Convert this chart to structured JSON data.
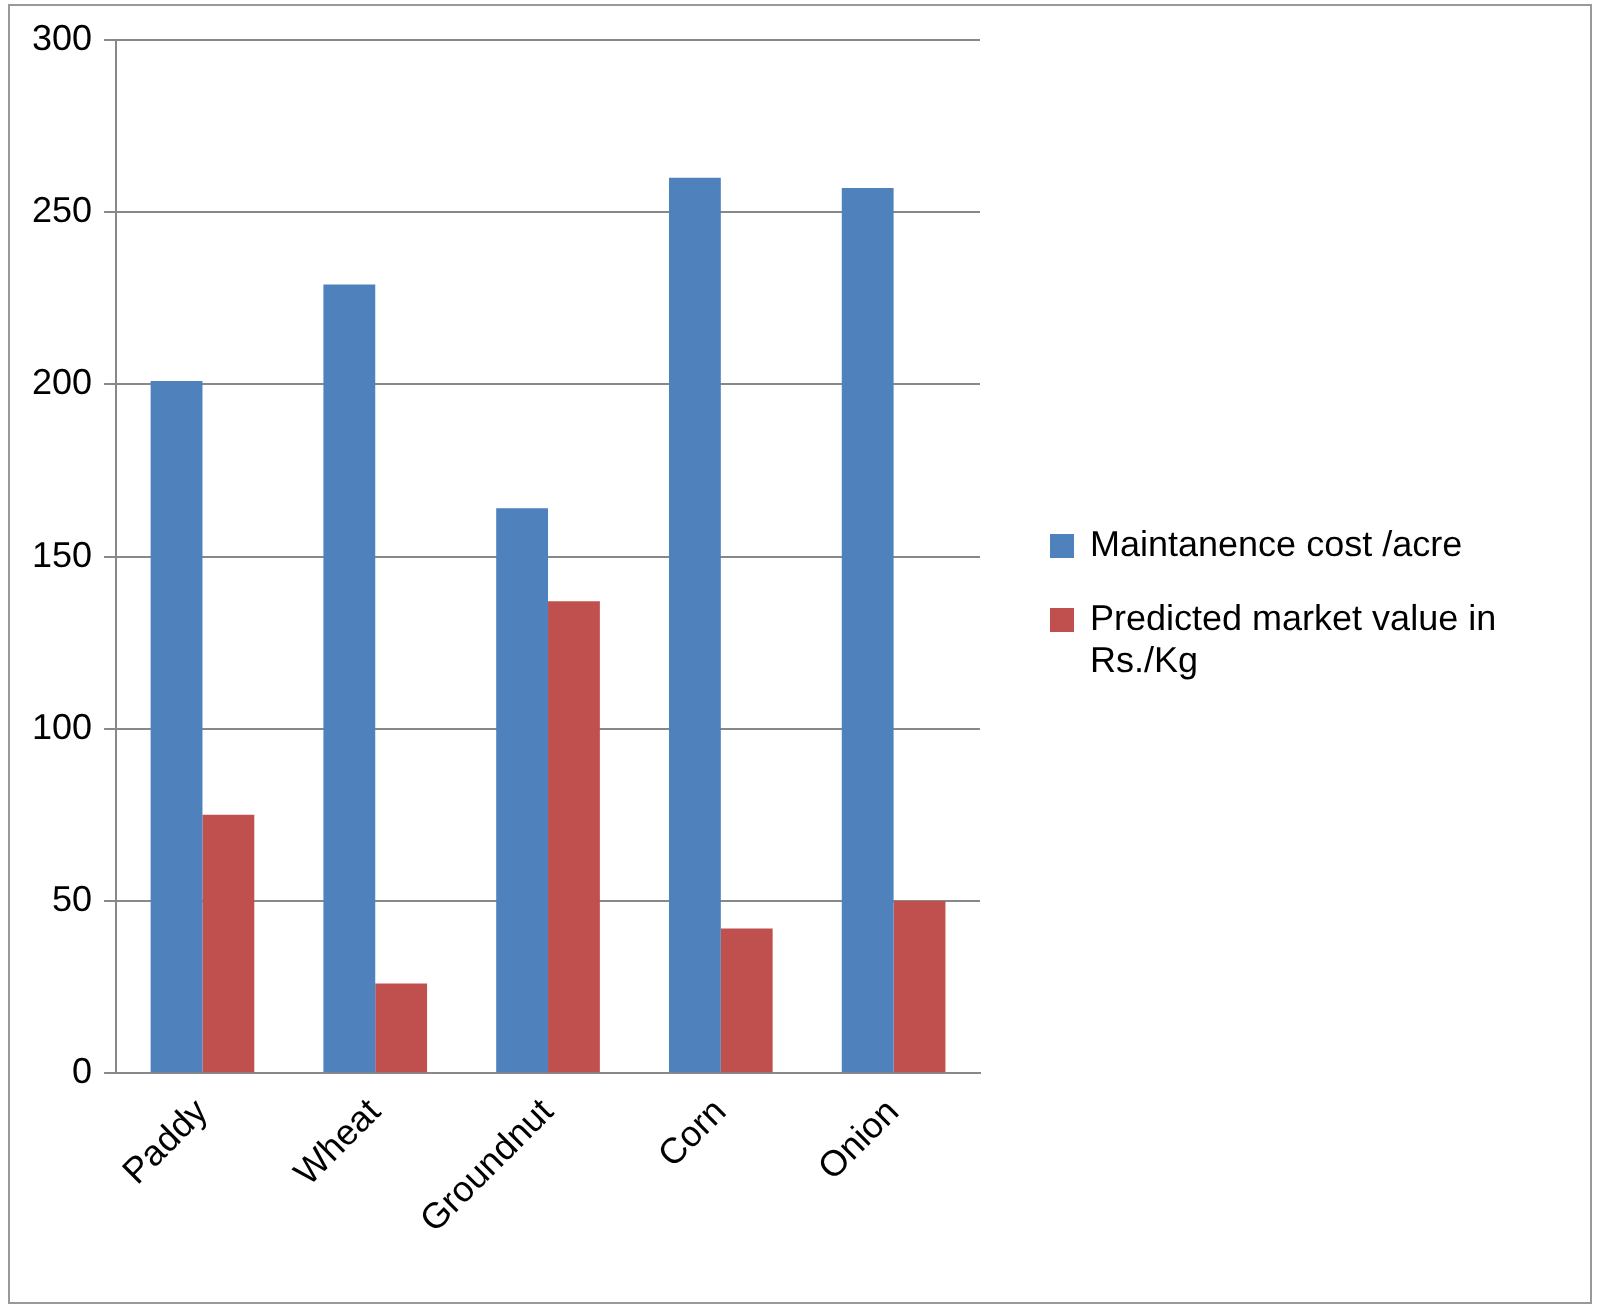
{
  "chart_data": {
    "type": "bar",
    "categories": [
      "Paddy",
      "Wheat",
      "Groundnut",
      "Corn",
      "Onion"
    ],
    "series": [
      {
        "name": "Maintanence cost /acre",
        "color": "#4f81bd",
        "values": [
          201,
          229,
          164,
          260,
          257
        ]
      },
      {
        "name": "Predicted market value in Rs./Kg",
        "color": "#c0504d",
        "values": [
          75,
          26,
          137,
          42,
          50
        ]
      }
    ],
    "ylim": [
      0,
      300
    ],
    "yticks": [
      0,
      50,
      100,
      150,
      200,
      250,
      300
    ],
    "grid": "y",
    "legend": "right"
  }
}
